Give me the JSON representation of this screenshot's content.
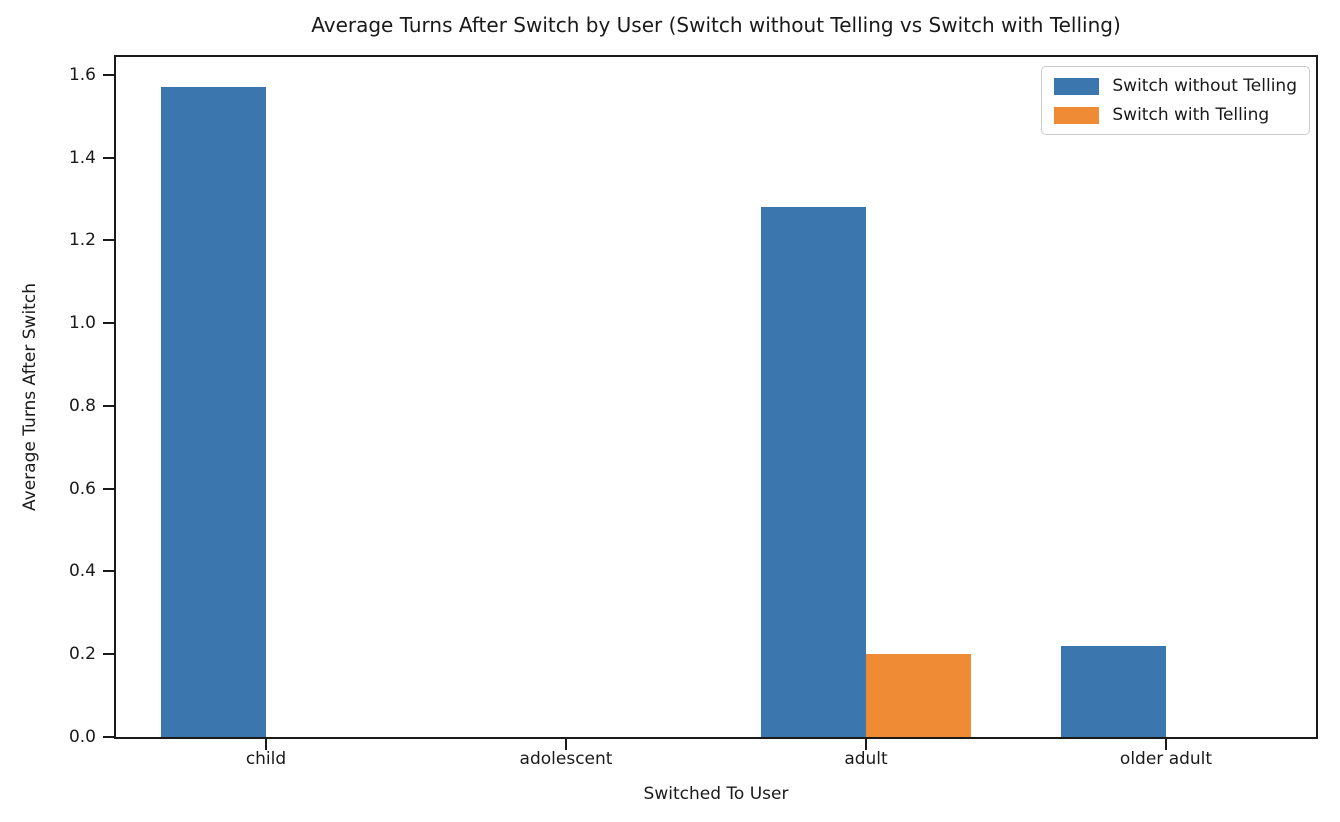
{
  "chart_data": {
    "type": "bar",
    "title": "Average Turns After Switch by User (Switch without Telling vs Switch with Telling)",
    "xlabel": "Switched To User",
    "ylabel": "Average Turns After Switch",
    "categories": [
      "child",
      "adolescent",
      "adult",
      "older adult"
    ],
    "series": [
      {
        "name": "Switch without Telling",
        "color": "#3C76AF",
        "values": [
          1.57,
          0,
          1.28,
          0.22
        ]
      },
      {
        "name": "Switch with Telling",
        "color": "#EE8B34",
        "values": [
          0,
          0,
          0.2,
          0
        ]
      }
    ],
    "ylim": [
      0,
      1.6434
    ],
    "yticks": [
      0.0,
      0.2,
      0.4,
      0.6,
      0.8,
      1.0,
      1.2,
      1.4,
      1.6
    ],
    "ytick_decimals": 1,
    "grid": false,
    "legend_position": "upper right",
    "background_color": "#ffffff",
    "axis_color": "#1a1a1a"
  }
}
